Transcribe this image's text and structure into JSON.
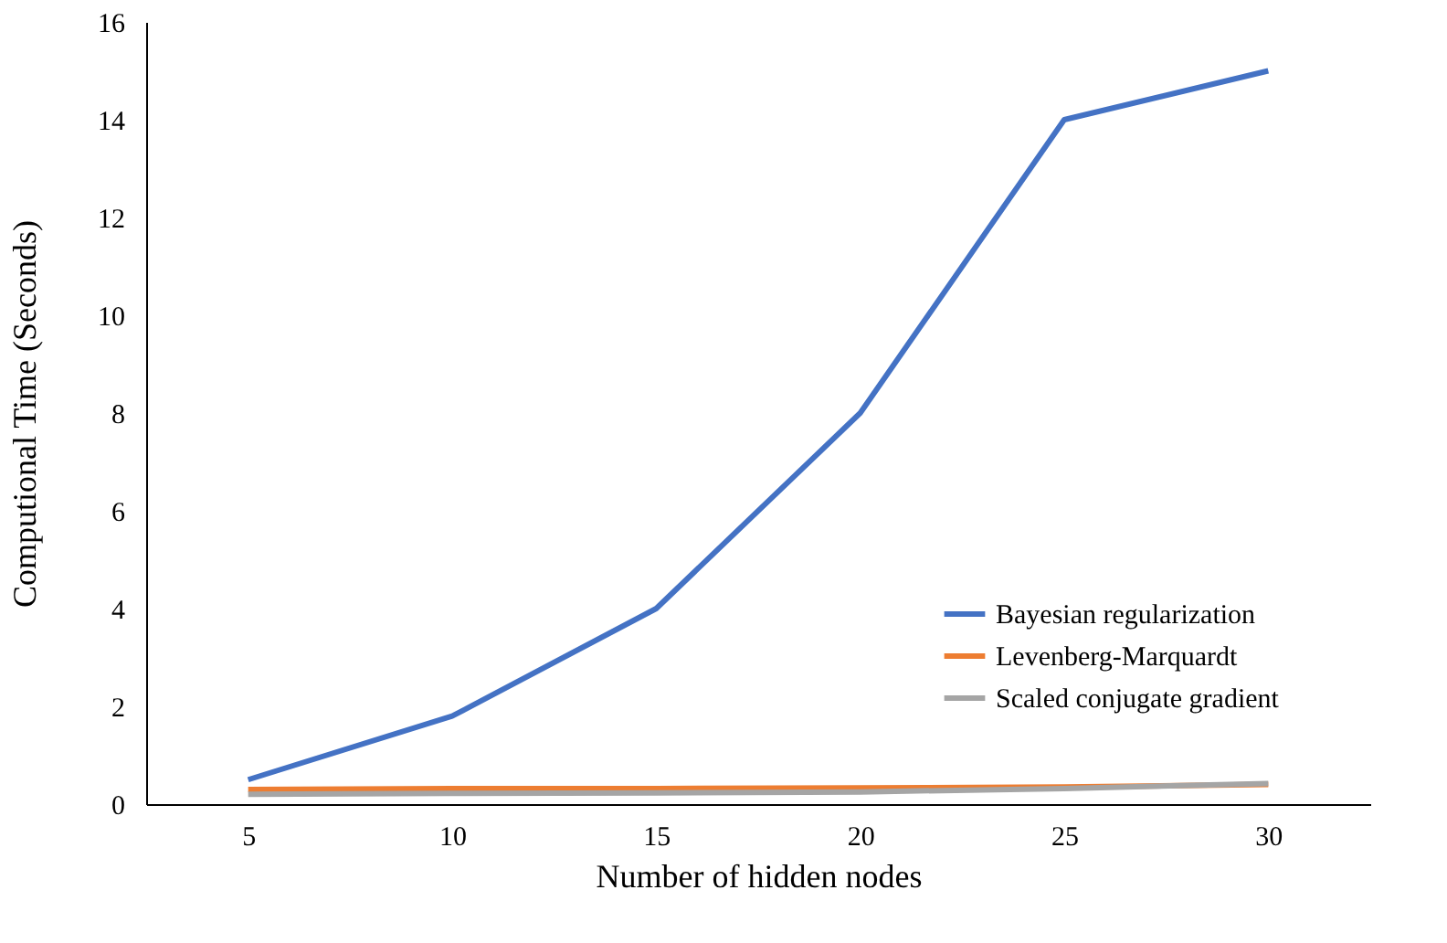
{
  "chart_data": {
    "type": "line",
    "xlabel": "Number of hidden nodes",
    "ylabel": "Computional Time (Seconds)",
    "categories": [
      "5",
      "10",
      "15",
      "20",
      "25",
      "30"
    ],
    "series": [
      {
        "name": "Bayesian regularization",
        "color": "#4472c4",
        "values": [
          0.5,
          1.8,
          4.0,
          8.0,
          14.0,
          15.0
        ]
      },
      {
        "name": "Levenberg-Marquardt",
        "color": "#ed7d31",
        "values": [
          0.3,
          0.32,
          0.32,
          0.33,
          0.35,
          0.4
        ]
      },
      {
        "name": "Scaled conjugate gradient",
        "color": "#a5a5a5",
        "values": [
          0.2,
          0.22,
          0.23,
          0.25,
          0.32,
          0.42
        ]
      }
    ],
    "ylim": [
      0,
      16
    ],
    "yticks": [
      0,
      2,
      4,
      6,
      8,
      10,
      12,
      14,
      16
    ],
    "grid": false,
    "legend": "bottom right",
    "marker": "none",
    "line_style": "solid"
  }
}
